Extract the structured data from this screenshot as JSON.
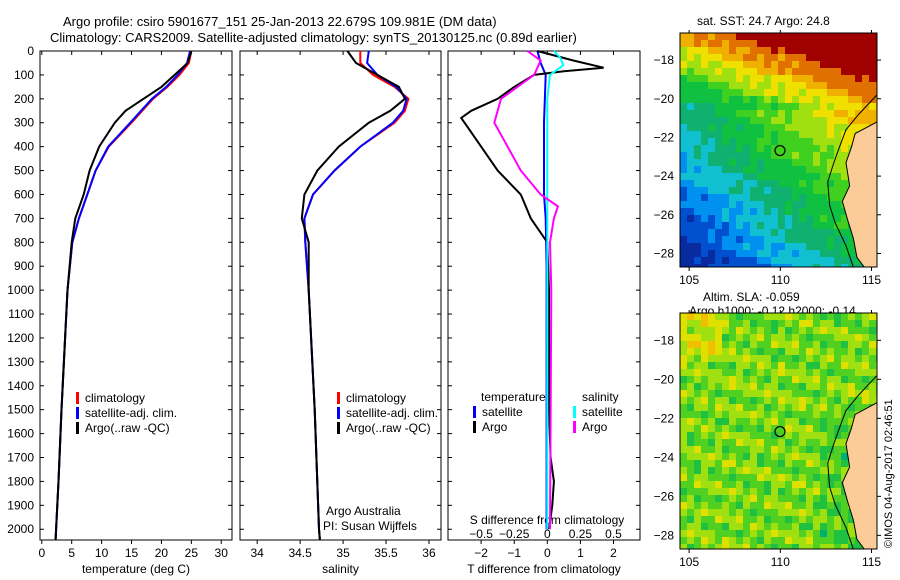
{
  "header": {
    "title_line1": "Argo profile: csiro 5901677_151 25-Jan-2013 22.679S 109.981E (DM data)",
    "title_line2": "Climatology: CARS2009. Satellite-adjusted climatology: synTS_20130125.nc (0.89d earlier)"
  },
  "footer": {
    "credit": "Argo Australia",
    "pi": "PI: Susan Wijffels",
    "stamp": "©IMOS 04-Aug-2017 02:46:51"
  },
  "colors": {
    "climatology": "#ff0000",
    "satellite": "#0000ff",
    "argo": "#000000",
    "sal_satellite": "#00ffff",
    "sal_argo": "#ff00ff"
  },
  "chart_data": [
    {
      "type": "line",
      "name": "temperature",
      "xlabel": "temperature (deg C)",
      "ylabel": "",
      "xlim": [
        -0.3,
        31.8
      ],
      "ylim": [
        2045,
        0
      ],
      "xticks": [
        0,
        5,
        10,
        15,
        20,
        25,
        30
      ],
      "yticks": [
        0,
        100,
        200,
        300,
        400,
        500,
        600,
        700,
        800,
        900,
        1000,
        1100,
        1200,
        1300,
        1400,
        1500,
        1600,
        1700,
        1800,
        1900,
        2000
      ],
      "legend": [
        "climatology",
        "satellite-adj. clim.",
        "Argo(..raw -QC)"
      ],
      "series": [
        {
          "name": "climatology",
          "color": "#ff0000",
          "depth": [
            0,
            50,
            100,
            150,
            200,
            300,
            400,
            500,
            600,
            700,
            800,
            1000,
            1200,
            1500,
            1800,
            2000,
            2045
          ],
          "values": [
            25,
            24.6,
            23,
            21,
            18.6,
            15,
            11.2,
            9,
            7.6,
            6.2,
            5.1,
            4.3,
            3.9,
            3.3,
            2.8,
            2.4,
            2.3
          ]
        },
        {
          "name": "satellite-adj. clim.",
          "color": "#0000ff",
          "depth": [
            0,
            50,
            100,
            150,
            200,
            300,
            400,
            500,
            600,
            700,
            800,
            1000,
            1200,
            1500,
            1800,
            2000,
            2045
          ],
          "values": [
            24.8,
            24.3,
            22.7,
            20.8,
            18.4,
            14.8,
            11.1,
            9,
            7.6,
            6.2,
            5.1,
            4.3,
            3.9,
            3.3,
            2.8,
            2.4,
            2.3
          ]
        },
        {
          "name": "Argo(..raw -QC)",
          "color": "#000000",
          "depth": [
            0,
            50,
            100,
            150,
            200,
            250,
            300,
            400,
            500,
            600,
            700,
            800,
            1000,
            1200,
            1500,
            1800,
            2000,
            2045
          ],
          "values": [
            25,
            24.4,
            22.2,
            20,
            17,
            14,
            12.2,
            9.6,
            8,
            7,
            5.6,
            5,
            4.3,
            3.9,
            3.3,
            2.8,
            2.4,
            2.3
          ]
        }
      ]
    },
    {
      "type": "line",
      "name": "salinity",
      "xlabel": "salinity",
      "xlim": [
        33.8,
        36.14
      ],
      "ylim": [
        2045,
        0
      ],
      "xticks": [
        34,
        34.5,
        35,
        35.5,
        36
      ],
      "legend": [
        "climatology",
        "satellite-adj. clim.",
        "Argo(..raw -QC)"
      ],
      "series": [
        {
          "name": "climatology",
          "color": "#ff0000",
          "depth": [
            0,
            50,
            100,
            150,
            200,
            250,
            300,
            400,
            500,
            600,
            700,
            800,
            1000,
            1500,
            2000,
            2045
          ],
          "values": [
            35.2,
            35.2,
            35.35,
            35.6,
            35.76,
            35.72,
            35.6,
            35.2,
            34.9,
            34.65,
            34.55,
            34.56,
            34.6,
            34.67,
            34.72,
            34.73
          ]
        },
        {
          "name": "satellite-adj. clim.",
          "color": "#0000ff",
          "depth": [
            0,
            50,
            100,
            150,
            200,
            250,
            300,
            400,
            500,
            600,
            700,
            800,
            1000,
            1500,
            2000,
            2045
          ],
          "values": [
            35.3,
            35.28,
            35.4,
            35.62,
            35.74,
            35.7,
            35.58,
            35.2,
            34.9,
            34.65,
            34.55,
            34.56,
            34.6,
            34.67,
            34.72,
            34.73
          ]
        },
        {
          "name": "Argo(..raw -QC)",
          "color": "#000000",
          "depth": [
            0,
            50,
            100,
            150,
            200,
            250,
            300,
            400,
            500,
            600,
            700,
            800,
            1000,
            1500,
            2000,
            2045
          ],
          "values": [
            35.05,
            35.15,
            35.4,
            35.65,
            35.72,
            35.55,
            35.3,
            34.95,
            34.7,
            34.55,
            34.52,
            34.6,
            34.6,
            34.67,
            34.72,
            34.73
          ]
        }
      ]
    },
    {
      "type": "line",
      "name": "differences",
      "xlabel": "T difference from climatology",
      "xlabel_top": "S difference from climatology",
      "xlim": [
        -3,
        2.8
      ],
      "s_xlim": [
        -0.75,
        0.7
      ],
      "ylim": [
        2045,
        0
      ],
      "xticks": [
        -2,
        -1,
        0,
        1,
        2
      ],
      "s_xticks": [
        -0.5,
        -0.25,
        0,
        0.25,
        0.5
      ],
      "legend_titles": [
        "temperature",
        "salinity"
      ],
      "legend": [
        "satellite",
        "Argo",
        "satellite",
        "Argo"
      ],
      "series": [
        {
          "name": "temperature satellite",
          "color": "#0000ff",
          "scale": "T",
          "depth": [
            0,
            50,
            100,
            300,
            600,
            700,
            900,
            1200,
            2000
          ],
          "values": [
            -0.3,
            -0.2,
            -0.05,
            -0.1,
            -0.1,
            -0.05,
            -0.02,
            -0.02,
            -0.02
          ]
        },
        {
          "name": "temperature Argo",
          "color": "#000000",
          "scale": "T",
          "depth": [
            0,
            40,
            70,
            85,
            100,
            150,
            200,
            250,
            280,
            320,
            400,
            500,
            600,
            700,
            800,
            1000,
            1500,
            1700,
            1800,
            1900,
            2000
          ],
          "values": [
            -0.3,
            0.8,
            1.7,
            0.5,
            -0.4,
            -1,
            -1.5,
            -2.3,
            -2.6,
            -2.4,
            -2,
            -1.5,
            -0.8,
            -0.5,
            0,
            0.05,
            0.05,
            0.1,
            0.2,
            0.15,
            0.05
          ]
        },
        {
          "name": "salinity satellite",
          "color": "#00ffff",
          "scale": "S",
          "depth": [
            0,
            30,
            60,
            100,
            200,
            2000
          ],
          "values": [
            0.05,
            0.1,
            0.12,
            0.02,
            0.0,
            0.0
          ]
        },
        {
          "name": "salinity Argo",
          "color": "#ff00ff",
          "scale": "S",
          "depth": [
            0,
            40,
            100,
            200,
            300,
            400,
            500,
            600,
            650,
            700,
            800,
            1000,
            2000
          ],
          "values": [
            -0.15,
            -0.05,
            -0.1,
            -0.35,
            -0.4,
            -0.3,
            -0.2,
            -0.05,
            0.08,
            0.05,
            0.02,
            0.03,
            0.02
          ]
        }
      ]
    },
    {
      "type": "heatmap",
      "name": "sst-map",
      "title": "sat. SST: 24.7 Argo: 24.8",
      "xlim": [
        104.5,
        115.3
      ],
      "ylim": [
        -28.7,
        -16.6
      ],
      "xticks": [
        105,
        110,
        115
      ],
      "yticks": [
        -18,
        -20,
        -22,
        -24,
        -26,
        -28
      ],
      "marker": {
        "lon": 109.981,
        "lat": -22.679
      }
    },
    {
      "type": "heatmap",
      "name": "sla-map",
      "title_line1": "Altim. SLA: -0.059",
      "title_line2": "Argo h1000: -0.12 h2000: -0.14",
      "xlim": [
        104.5,
        115.3
      ],
      "ylim": [
        -28.7,
        -16.6
      ],
      "xticks": [
        105,
        110,
        115
      ],
      "yticks": [
        -18,
        -20,
        -22,
        -24,
        -26,
        -28
      ],
      "marker": {
        "lon": 109.981,
        "lat": -22.679
      }
    }
  ]
}
